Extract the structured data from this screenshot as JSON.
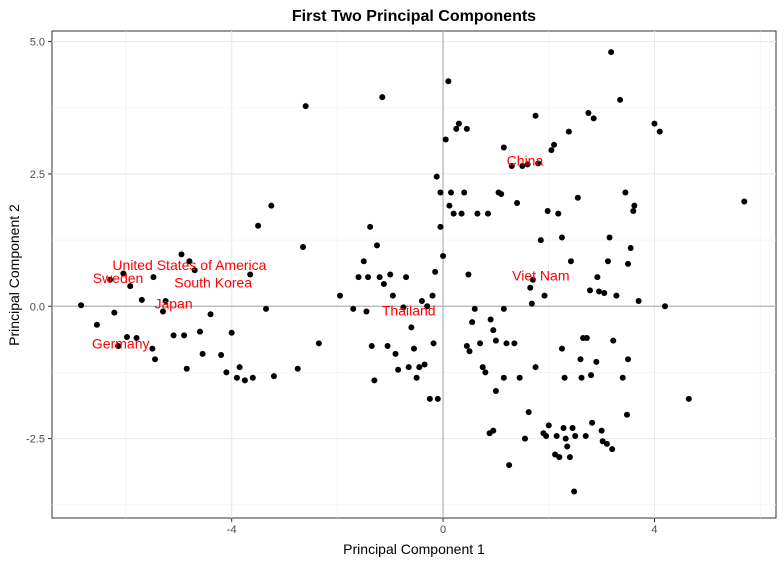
{
  "chart_data": {
    "type": "scatter",
    "title": "First Two Principal Components",
    "xlabel": "Principal Component 1",
    "ylabel": "Principal Component 2",
    "xlim": [
      -7.4,
      6.3
    ],
    "ylim": [
      -4.0,
      5.2
    ],
    "xticks": [
      {
        "value": -4,
        "label": "-4"
      },
      {
        "value": 0,
        "label": "0"
      },
      {
        "value": 4,
        "label": "4"
      }
    ],
    "yticks": [
      {
        "value": -2.5,
        "label": "-2.5"
      },
      {
        "value": 0,
        "label": "0.0"
      },
      {
        "value": 2.5,
        "label": "2.5"
      },
      {
        "value": 5,
        "label": "5.0"
      }
    ],
    "grid": true,
    "reference_lines": {
      "x": 0,
      "y": 0
    },
    "point_color": "#000000",
    "label_color": "#ff0000",
    "labels": [
      {
        "text": "China",
        "x": 1.55,
        "y": 2.75
      },
      {
        "text": "Viet Nam",
        "x": 1.85,
        "y": 0.58
      },
      {
        "text": "Thailand",
        "x": -0.65,
        "y": -0.08
      },
      {
        "text": "United States of America",
        "x": -4.8,
        "y": 0.78
      },
      {
        "text": "Sweden",
        "x": -6.15,
        "y": 0.53
      },
      {
        "text": "South Korea",
        "x": -4.35,
        "y": 0.45
      },
      {
        "text": "Japan",
        "x": -5.1,
        "y": 0.05
      },
      {
        "text": "Germany",
        "x": -6.1,
        "y": -0.7
      }
    ],
    "points": [
      [
        -6.85,
        0.02
      ],
      [
        -6.55,
        -0.35
      ],
      [
        -6.3,
        0.5
      ],
      [
        -6.22,
        -0.12
      ],
      [
        -6.15,
        -0.75
      ],
      [
        -6.05,
        0.62
      ],
      [
        -5.98,
        -0.58
      ],
      [
        -5.92,
        0.38
      ],
      [
        -5.8,
        -0.6
      ],
      [
        -5.7,
        0.12
      ],
      [
        -5.5,
        -0.8
      ],
      [
        -5.45,
        -1.0
      ],
      [
        -5.48,
        0.55
      ],
      [
        -5.3,
        -0.1
      ],
      [
        -5.25,
        0.1
      ],
      [
        -5.1,
        -0.55
      ],
      [
        -4.95,
        0.98
      ],
      [
        -4.9,
        -0.55
      ],
      [
        -4.85,
        -1.18
      ],
      [
        -4.8,
        0.85
      ],
      [
        -4.7,
        0.68
      ],
      [
        -4.6,
        -0.48
      ],
      [
        -4.55,
        -0.9
      ],
      [
        -4.4,
        -0.15
      ],
      [
        -4.2,
        -0.92
      ],
      [
        -4.1,
        -1.25
      ],
      [
        -4.0,
        -0.5
      ],
      [
        -3.9,
        -1.35
      ],
      [
        -3.85,
        -1.15
      ],
      [
        -3.75,
        -1.4
      ],
      [
        -3.65,
        0.6
      ],
      [
        -3.6,
        -1.35
      ],
      [
        -3.5,
        1.52
      ],
      [
        -3.35,
        -0.05
      ],
      [
        -3.25,
        1.9
      ],
      [
        -3.2,
        -1.32
      ],
      [
        -2.75,
        -1.18
      ],
      [
        -2.65,
        1.12
      ],
      [
        -2.6,
        3.78
      ],
      [
        -2.35,
        -0.7
      ],
      [
        -1.95,
        0.2
      ],
      [
        -1.7,
        -0.05
      ],
      [
        -1.6,
        0.55
      ],
      [
        -1.5,
        0.85
      ],
      [
        -1.45,
        -0.1
      ],
      [
        -1.42,
        0.55
      ],
      [
        -1.38,
        1.5
      ],
      [
        -1.35,
        -0.75
      ],
      [
        -1.3,
        -1.4
      ],
      [
        -1.25,
        1.15
      ],
      [
        -1.2,
        0.55
      ],
      [
        -1.15,
        3.95
      ],
      [
        -1.12,
        0.42
      ],
      [
        -1.05,
        -0.75
      ],
      [
        -1.0,
        0.6
      ],
      [
        -0.95,
        0.2
      ],
      [
        -0.9,
        -0.9
      ],
      [
        -0.85,
        -1.2
      ],
      [
        -0.75,
        -0.02
      ],
      [
        -0.7,
        0.55
      ],
      [
        -0.65,
        -1.15
      ],
      [
        -0.6,
        -0.4
      ],
      [
        -0.55,
        -0.8
      ],
      [
        -0.5,
        -1.35
      ],
      [
        -0.45,
        -1.15
      ],
      [
        -0.4,
        0.1
      ],
      [
        -0.35,
        -1.1
      ],
      [
        -0.3,
        0.0
      ],
      [
        -0.25,
        -1.75
      ],
      [
        -0.2,
        0.2
      ],
      [
        -0.18,
        -0.7
      ],
      [
        -0.15,
        0.65
      ],
      [
        -0.12,
        2.45
      ],
      [
        -0.1,
        -1.75
      ],
      [
        -0.05,
        2.15
      ],
      [
        -0.05,
        1.5
      ],
      [
        0.0,
        0.95
      ],
      [
        0.05,
        3.15
      ],
      [
        0.1,
        4.25
      ],
      [
        0.12,
        1.9
      ],
      [
        0.15,
        2.15
      ],
      [
        0.2,
        1.75
      ],
      [
        0.25,
        3.35
      ],
      [
        0.3,
        3.45
      ],
      [
        0.35,
        1.75
      ],
      [
        0.4,
        2.15
      ],
      [
        0.45,
        -0.75
      ],
      [
        0.45,
        3.35
      ],
      [
        0.48,
        0.6
      ],
      [
        0.5,
        -0.85
      ],
      [
        0.55,
        -0.3
      ],
      [
        0.6,
        -0.05
      ],
      [
        0.65,
        1.75
      ],
      [
        0.7,
        -0.7
      ],
      [
        0.75,
        -1.15
      ],
      [
        0.8,
        -1.25
      ],
      [
        0.85,
        1.75
      ],
      [
        0.88,
        -2.4
      ],
      [
        0.9,
        -0.25
      ],
      [
        0.95,
        -2.35
      ],
      [
        0.95,
        -0.45
      ],
      [
        1.0,
        -0.65
      ],
      [
        1.0,
        -1.6
      ],
      [
        1.05,
        2.15
      ],
      [
        1.1,
        2.12
      ],
      [
        1.15,
        -0.05
      ],
      [
        1.15,
        -1.35
      ],
      [
        1.15,
        3.0
      ],
      [
        1.2,
        -0.7
      ],
      [
        1.25,
        -3.0
      ],
      [
        1.3,
        2.65
      ],
      [
        1.35,
        -0.7
      ],
      [
        1.4,
        1.95
      ],
      [
        1.45,
        -1.35
      ],
      [
        1.5,
        2.65
      ],
      [
        1.55,
        -2.5
      ],
      [
        1.6,
        2.68
      ],
      [
        1.62,
        -2.0
      ],
      [
        1.65,
        0.35
      ],
      [
        1.68,
        0.05
      ],
      [
        1.7,
        0.5
      ],
      [
        1.75,
        3.6
      ],
      [
        1.75,
        -1.15
      ],
      [
        1.8,
        2.7
      ],
      [
        1.85,
        1.25
      ],
      [
        1.9,
        -2.4
      ],
      [
        1.92,
        0.2
      ],
      [
        1.95,
        -2.45
      ],
      [
        1.98,
        1.8
      ],
      [
        2.0,
        -2.25
      ],
      [
        2.05,
        2.95
      ],
      [
        2.1,
        3.05
      ],
      [
        2.12,
        -2.8
      ],
      [
        2.15,
        -2.45
      ],
      [
        2.18,
        1.75
      ],
      [
        2.2,
        -2.85
      ],
      [
        2.25,
        1.3
      ],
      [
        2.25,
        -0.8
      ],
      [
        2.28,
        -2.3
      ],
      [
        2.3,
        -1.35
      ],
      [
        2.32,
        -2.5
      ],
      [
        2.35,
        -2.65
      ],
      [
        2.38,
        3.3
      ],
      [
        2.4,
        -2.85
      ],
      [
        2.42,
        0.85
      ],
      [
        2.45,
        -2.3
      ],
      [
        2.48,
        -3.5
      ],
      [
        2.5,
        -2.45
      ],
      [
        2.55,
        2.05
      ],
      [
        2.6,
        -1.0
      ],
      [
        2.62,
        -1.35
      ],
      [
        2.65,
        -0.6
      ],
      [
        2.7,
        -2.45
      ],
      [
        2.72,
        -0.6
      ],
      [
        2.75,
        3.65
      ],
      [
        2.78,
        0.3
      ],
      [
        2.8,
        -1.3
      ],
      [
        2.82,
        -2.2
      ],
      [
        2.85,
        3.55
      ],
      [
        2.9,
        -1.05
      ],
      [
        2.92,
        0.55
      ],
      [
        2.95,
        0.28
      ],
      [
        3.0,
        -2.35
      ],
      [
        3.02,
        -2.55
      ],
      [
        3.05,
        0.25
      ],
      [
        3.1,
        -2.6
      ],
      [
        3.12,
        0.85
      ],
      [
        3.15,
        1.3
      ],
      [
        3.18,
        4.8
      ],
      [
        3.2,
        -2.7
      ],
      [
        3.22,
        -0.65
      ],
      [
        3.28,
        0.2
      ],
      [
        3.35,
        3.9
      ],
      [
        3.4,
        -1.35
      ],
      [
        3.45,
        2.15
      ],
      [
        3.48,
        -2.05
      ],
      [
        3.5,
        -1.0
      ],
      [
        3.5,
        0.8
      ],
      [
        3.55,
        1.1
      ],
      [
        3.6,
        1.8
      ],
      [
        3.62,
        1.9
      ],
      [
        3.7,
        0.1
      ],
      [
        4.0,
        3.45
      ],
      [
        4.1,
        3.3
      ],
      [
        4.2,
        0.0
      ],
      [
        4.65,
        -1.75
      ],
      [
        5.7,
        1.98
      ]
    ]
  }
}
